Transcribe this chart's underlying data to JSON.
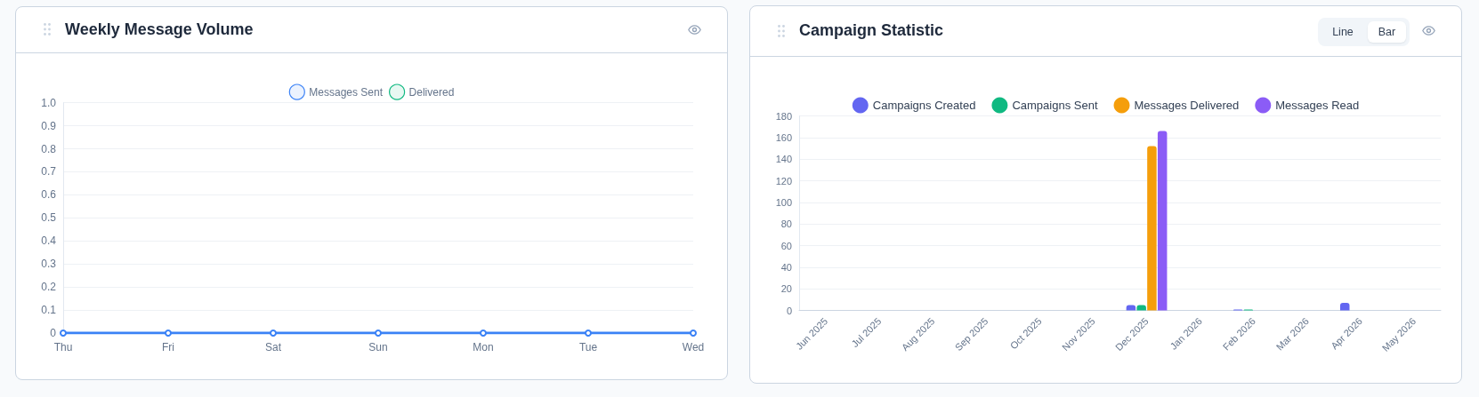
{
  "chart_data": [
    {
      "type": "line",
      "title": "Weekly Message Volume",
      "categories": [
        "Thu",
        "Fri",
        "Sat",
        "Sun",
        "Mon",
        "Tue",
        "Wed"
      ],
      "series": [
        {
          "name": "Messages Sent",
          "color": "#3b82f6",
          "values": [
            0,
            0,
            0,
            0,
            0,
            0,
            0
          ]
        },
        {
          "name": "Delivered",
          "color": "#10b981",
          "values": [
            null,
            null,
            null,
            null,
            null,
            null,
            null
          ]
        }
      ],
      "ylim": [
        0,
        1
      ],
      "yticks": [
        0,
        0.1,
        0.2,
        0.3,
        0.4,
        0.5,
        0.6,
        0.7,
        0.8,
        0.9,
        {
          "value": 1,
          "label": "1.0"
        }
      ],
      "grid": "y",
      "legend": "top",
      "marker": "circle",
      "line_style": "solid"
    },
    {
      "type": "bar",
      "title": "Campaign Statistic",
      "categories": [
        "Jun 2025",
        "Jul 2025",
        "Aug 2025",
        "Sep 2025",
        "Oct 2025",
        "Nov 2025",
        "Dec 2025",
        "Jan 2026",
        "Feb 2026",
        "Mar 2026",
        "Apr 2026",
        "May 2026"
      ],
      "series": [
        {
          "name": "Campaigns Created",
          "color": "#6366f1",
          "values": [
            0,
            0,
            0,
            0,
            0,
            0,
            5,
            0,
            1,
            0,
            7,
            0
          ]
        },
        {
          "name": "Campaigns Sent",
          "color": "#10b981",
          "values": [
            0,
            0,
            0,
            0,
            0,
            0,
            5,
            0,
            1,
            0,
            0,
            0
          ]
        },
        {
          "name": "Messages Delivered",
          "color": "#f59e0b",
          "values": [
            0,
            0,
            0,
            0,
            0,
            0,
            152,
            0,
            0,
            0,
            0,
            0
          ]
        },
        {
          "name": "Messages Read",
          "color": "#8b5cf6",
          "values": [
            0,
            0,
            0,
            0,
            0,
            0,
            166,
            0,
            0,
            0,
            0,
            0
          ]
        }
      ],
      "ylim": [
        0,
        180
      ],
      "yticks": [
        0,
        20,
        40,
        60,
        80,
        100,
        120,
        140,
        160,
        180
      ],
      "grid": "y",
      "legend": "top",
      "annotations": [
        "Line",
        "Bar"
      ]
    }
  ]
}
